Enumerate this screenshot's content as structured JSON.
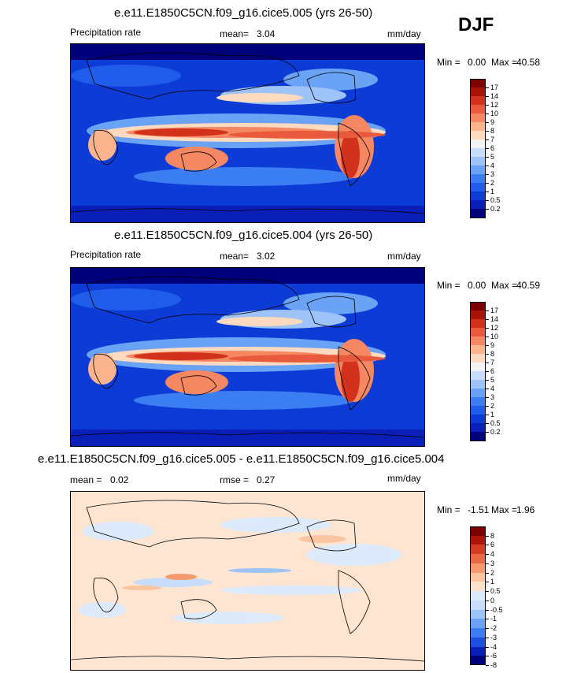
{
  "season": "DJF",
  "colors": {
    "precip_scale": [
      "#00007a",
      "#0a1fb8",
      "#0d3bd6",
      "#1f5ce9",
      "#3b7ef2",
      "#6aa2f5",
      "#9dc3f8",
      "#c8ddfb",
      "#f3f3f3",
      "#fcd9bf",
      "#fbb48e",
      "#f58863",
      "#e95a3c",
      "#d2321c",
      "#a81308",
      "#7a0000"
    ],
    "diff_scale": [
      "#00007a",
      "#0a1fb8",
      "#1f4ee3",
      "#3b7ef2",
      "#6aa2f5",
      "#9dc3f8",
      "#c8ddfb",
      "#dceafc",
      "#fbe2cc",
      "#fbc4a0",
      "#f6996f",
      "#ea6a46",
      "#d53a22",
      "#ad1508",
      "#7a0000"
    ],
    "map_fill": "#0d3bd6",
    "diff_fill": "#fde5d2"
  },
  "panels": [
    {
      "title": "e.e11.E1850C5CN.f09_g16.cice5.005 (yrs 26-50)",
      "left_label": "Precipitation rate",
      "mean_label": "mean=",
      "mean_value": "3.04",
      "units": "mm/day",
      "min_label": "Min =",
      "min_value": "0.00",
      "max_label": "Max =",
      "max_value": "40.58",
      "colorbar_labels": [
        "17",
        "14",
        "12",
        "10",
        "9",
        "8",
        "7",
        "6",
        "5",
        "4",
        "3",
        "2",
        "1",
        "0.5",
        "0.2"
      ]
    },
    {
      "title": "e.e11.E1850C5CN.f09_g16.cice5.004 (yrs 26-50)",
      "left_label": "Precipitation rate",
      "mean_label": "mean=",
      "mean_value": "3.02",
      "units": "mm/day",
      "min_label": "Min =",
      "min_value": "0.00",
      "max_label": "Max =",
      "max_value": "40.59",
      "colorbar_labels": [
        "17",
        "14",
        "12",
        "10",
        "9",
        "8",
        "7",
        "6",
        "5",
        "4",
        "3",
        "2",
        "1",
        "0.5",
        "0.2"
      ]
    },
    {
      "title": "e.e11.E1850C5CN.f09_g16.cice5.005 - e.e11.E1850C5CN.f09_g16.cice5.004",
      "left_label": "mean =",
      "left_value": "0.02",
      "mid_label": "rmse =",
      "mid_value": "0.27",
      "units": "mm/day",
      "min_label": "Min =",
      "min_value": "-1.51",
      "max_label": "Max =",
      "max_value": "1.96",
      "colorbar_labels": [
        "8",
        "6",
        "4",
        "3",
        "2",
        "1",
        "0.5",
        "0",
        "-0.5",
        "-1",
        "-2",
        "-3",
        "-4",
        "-6",
        "-8"
      ]
    }
  ],
  "chart_data": [
    {
      "type": "heatmap",
      "title": "e.e11.E1850C5CN.f09_g16.cice5.005 (yrs 26-50)",
      "variable": "Precipitation rate",
      "units": "mm/day",
      "season": "DJF",
      "mean": 3.04,
      "min": 0.0,
      "max": 40.58,
      "contour_levels": [
        0.2,
        0.5,
        1,
        2,
        3,
        4,
        5,
        6,
        7,
        8,
        9,
        10,
        12,
        14,
        17
      ]
    },
    {
      "type": "heatmap",
      "title": "e.e11.E1850C5CN.f09_g16.cice5.004 (yrs 26-50)",
      "variable": "Precipitation rate",
      "units": "mm/day",
      "season": "DJF",
      "mean": 3.02,
      "min": 0.0,
      "max": 40.59,
      "contour_levels": [
        0.2,
        0.5,
        1,
        2,
        3,
        4,
        5,
        6,
        7,
        8,
        9,
        10,
        12,
        14,
        17
      ]
    },
    {
      "type": "heatmap",
      "title": "e.e11.E1850C5CN.f09_g16.cice5.005 - e.e11.E1850C5CN.f09_g16.cice5.004",
      "units": "mm/day",
      "season": "DJF",
      "mean": 0.02,
      "rmse": 0.27,
      "min": -1.51,
      "max": 1.96,
      "contour_levels": [
        -8,
        -6,
        -4,
        -3,
        -2,
        -1,
        -0.5,
        0,
        0.5,
        1,
        2,
        3,
        4,
        6,
        8
      ]
    }
  ]
}
